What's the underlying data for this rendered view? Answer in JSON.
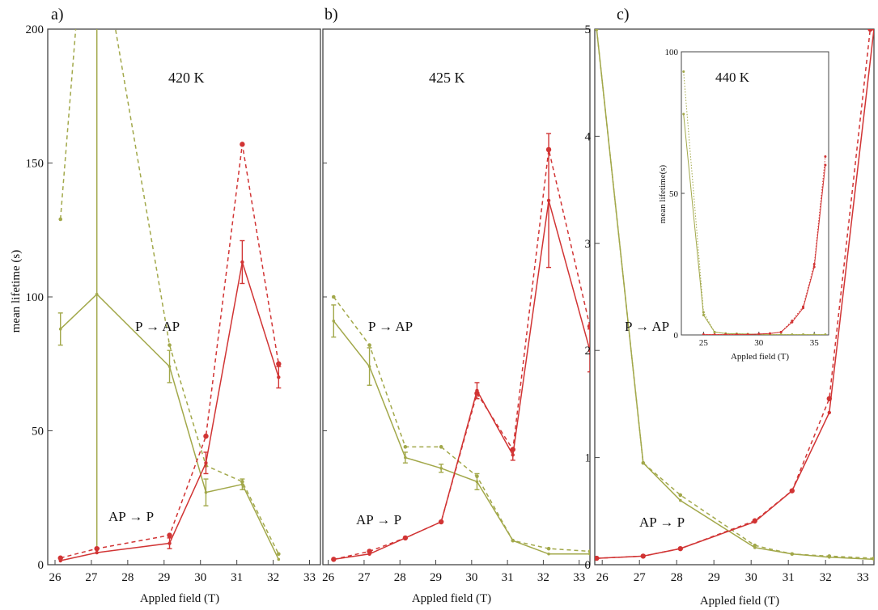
{
  "colors": {
    "green": "#a2a84a",
    "green_dark": "#8f952f",
    "red": "#d13434",
    "frame": "#444444"
  },
  "figure": {
    "y_axis_title": "mean lifetime (s)",
    "x_axis_title": "Appled field (T)"
  },
  "chart_data": [
    {
      "type": "line",
      "panel_label": "a)",
      "temperature_label": "420 K",
      "annotations": [
        "P → AP",
        "AP → P"
      ],
      "xlim": [
        25.8,
        33.3
      ],
      "ylim": [
        0,
        200
      ],
      "x_ticks": [
        26,
        27,
        28,
        29,
        30,
        31,
        32,
        33
      ],
      "y_ticks": [
        0,
        50,
        100,
        150,
        200
      ],
      "series": [
        {
          "color": "green",
          "style": "dashed",
          "x": [
            26.15,
            26.6,
            27.15,
            27.6,
            29.15,
            30.15,
            31.15,
            32.15
          ],
          "y": [
            129,
            205,
            205,
            205,
            82,
            37,
            31,
            4
          ]
        },
        {
          "color": "green",
          "style": "solid",
          "x": [
            26.15,
            27.15,
            29.15,
            30.15,
            31.15,
            32.15
          ],
          "y": [
            88,
            101,
            74,
            27,
            30,
            2
          ],
          "err": [
            6,
            0,
            6,
            5,
            2,
            0
          ]
        },
        {
          "color": "green",
          "style": "solid",
          "x": [
            27.15,
            27.15
          ],
          "y": [
            5,
            200
          ]
        },
        {
          "color": "red",
          "style": "dashed",
          "x": [
            26.15,
            27.15,
            29.15,
            30.15,
            31.15,
            32.15
          ],
          "y": [
            2.5,
            6,
            11,
            48,
            157,
            75
          ]
        },
        {
          "color": "red",
          "style": "solid",
          "x": [
            26.15,
            27.15,
            29.15,
            30.15,
            31.15,
            32.15
          ],
          "y": [
            1.5,
            4.5,
            8,
            38,
            113,
            70
          ],
          "err": [
            0,
            0,
            2,
            4,
            8,
            4
          ]
        }
      ]
    },
    {
      "type": "line",
      "panel_label": "b)",
      "temperature_label": "425 K",
      "annotations": [
        "P → AP",
        "AP → P"
      ],
      "xlim": [
        25.85,
        33.3
      ],
      "ylim": [
        0,
        200
      ],
      "x_ticks": [
        26,
        27,
        28,
        29,
        30,
        31,
        32,
        33
      ],
      "series": [
        {
          "color": "green",
          "style": "dashed",
          "x": [
            26.15,
            27.15,
            28.15,
            29.15,
            30.15,
            31.15,
            32.15,
            33.3
          ],
          "y": [
            100,
            82,
            44,
            44,
            33,
            9,
            6,
            5
          ]
        },
        {
          "color": "green",
          "style": "solid",
          "x": [
            26.15,
            27.15,
            28.15,
            29.15,
            30.15,
            31.15,
            32.15,
            33.3
          ],
          "y": [
            91,
            74,
            40,
            36,
            31,
            9,
            4,
            4
          ],
          "err": [
            6,
            7,
            2,
            1.5,
            3,
            0,
            0,
            0
          ]
        },
        {
          "color": "red",
          "style": "dashed",
          "x": [
            26.15,
            27.15,
            28.15,
            29.15,
            30.15,
            31.15,
            32.15,
            33.3
          ],
          "y": [
            2,
            5,
            10,
            16,
            64,
            43,
            155,
            89
          ]
        },
        {
          "color": "red",
          "style": "solid",
          "x": [
            26.15,
            27.15,
            28.15,
            29.15,
            30.15,
            31.15,
            32.15,
            33.3
          ],
          "y": [
            2,
            4,
            10,
            16,
            65,
            41,
            136,
            80
          ],
          "err": [
            0,
            0,
            0,
            0,
            3,
            2,
            25,
            8
          ]
        }
      ]
    },
    {
      "type": "line",
      "panel_label": "c)",
      "temperature_label": "",
      "annotations": [
        "P → AP",
        "AP → P"
      ],
      "xlim": [
        25.8,
        33.3
      ],
      "ylim": [
        0,
        5
      ],
      "x_ticks": [
        26,
        27,
        28,
        29,
        30,
        31,
        32,
        33
      ],
      "y_ticks": [
        0,
        1,
        2,
        3,
        4,
        5
      ],
      "series": [
        {
          "color": "green",
          "style": "dashed",
          "x": [
            25.85,
            27.1,
            28.1,
            30.1,
            31.1,
            32.1,
            33.3
          ],
          "y": [
            5,
            0.95,
            0.65,
            0.18,
            0.1,
            0.08,
            0.06
          ]
        },
        {
          "color": "green",
          "style": "solid",
          "x": [
            25.85,
            27.1,
            28.1,
            30.1,
            31.1,
            32.1,
            33.3
          ],
          "y": [
            5,
            0.95,
            0.6,
            0.16,
            0.1,
            0.07,
            0.05
          ]
        },
        {
          "color": "red",
          "style": "dashed",
          "x": [
            25.85,
            27.1,
            28.1,
            30.1,
            31.1,
            32.1,
            33.2
          ],
          "y": [
            0.06,
            0.08,
            0.15,
            0.41,
            0.69,
            1.55,
            5
          ]
        },
        {
          "color": "red",
          "style": "solid",
          "x": [
            25.85,
            27.1,
            28.1,
            30.1,
            31.1,
            32.1,
            33.3
          ],
          "y": [
            0.06,
            0.08,
            0.15,
            0.4,
            0.69,
            1.42,
            5
          ]
        }
      ]
    },
    {
      "type": "line",
      "panel_label": "inset",
      "temperature_label": "440 K",
      "xlabel": "Appled field (T)",
      "ylabel": "mean lifetime(s)",
      "xlim": [
        23,
        36.3
      ],
      "ylim": [
        0,
        100
      ],
      "x_ticks": [
        25,
        30,
        35
      ],
      "y_ticks": [
        0,
        50,
        100
      ],
      "series": [
        {
          "color": "green",
          "style": "dashed",
          "x": [
            23.2,
            25,
            26,
            27,
            28,
            29,
            30,
            31,
            32,
            33,
            34,
            35,
            36
          ],
          "y": [
            93,
            8,
            1,
            0.5,
            0.4,
            0.3,
            0.2,
            0.1,
            0.1,
            0.1,
            0.1,
            0.1,
            0.1
          ]
        },
        {
          "color": "green",
          "style": "solid",
          "x": [
            23.2,
            25,
            26,
            27,
            28,
            29,
            30,
            31,
            32,
            33,
            34,
            35,
            36
          ],
          "y": [
            78,
            7,
            1,
            0.5,
            0.4,
            0.3,
            0.2,
            0.1,
            0.1,
            0.1,
            0.1,
            0.1,
            0.1
          ]
        },
        {
          "color": "red",
          "style": "dashed",
          "x": [
            25,
            26,
            27,
            28,
            29,
            30,
            31,
            32,
            33,
            34,
            35,
            36
          ],
          "y": [
            0.1,
            0.1,
            0.1,
            0.1,
            0.1,
            0.3,
            0.5,
            1,
            5,
            10,
            25,
            63
          ]
        },
        {
          "color": "red",
          "style": "solid",
          "x": [
            25,
            26,
            27,
            28,
            29,
            30,
            31,
            32,
            33,
            34,
            35,
            36
          ],
          "y": [
            0.1,
            0.1,
            0.1,
            0.1,
            0.1,
            0.3,
            0.5,
            1,
            4.5,
            9.5,
            24,
            60
          ]
        }
      ]
    }
  ]
}
